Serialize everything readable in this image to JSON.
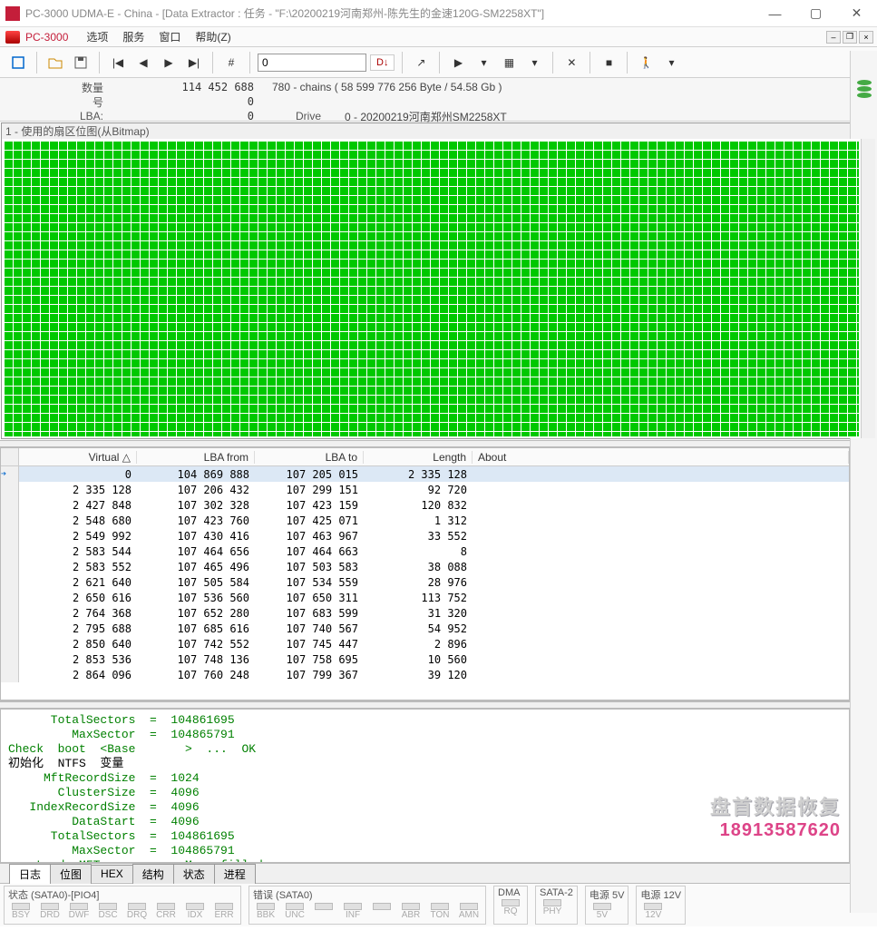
{
  "window": {
    "title": "PC-3000 UDMA-E - China - [Data Extractor : 任务 - \"F:\\20200219河南郑州-陈先生的金速120G-SM2258XT\"]"
  },
  "menu": {
    "app": "PC-3000",
    "items": [
      "选项",
      "服务",
      "窗口",
      "帮助(Z)"
    ]
  },
  "toolbar": {
    "lba_value": "0",
    "badge": "D↓"
  },
  "info": {
    "labels": {
      "qty": "数量",
      "num": "号",
      "lba": "LBA:",
      "drive": "Drive"
    },
    "qty_val": "114 452 688",
    "chains": "780 - chains  ( 58 599 776 256 Byte /  54.58 Gb )",
    "num_val": "0",
    "lba_val": "0",
    "drive_val": "0 - 20200219河南郑州SM2258XT"
  },
  "bitmap": {
    "title": "1 - 使用的扇区位图(从Bitmap)"
  },
  "table": {
    "headers": {
      "virtual": "Virtual",
      "from": "LBA from",
      "to": "LBA to",
      "length": "Length",
      "about": "About"
    },
    "rows": [
      {
        "v": "0",
        "f": "104 869 888",
        "t": "107 205 015",
        "l": "2 335 128",
        "a": ""
      },
      {
        "v": "2 335 128",
        "f": "107 206 432",
        "t": "107 299 151",
        "l": "92 720",
        "a": ""
      },
      {
        "v": "2 427 848",
        "f": "107 302 328",
        "t": "107 423 159",
        "l": "120 832",
        "a": ""
      },
      {
        "v": "2 548 680",
        "f": "107 423 760",
        "t": "107 425 071",
        "l": "1 312",
        "a": ""
      },
      {
        "v": "2 549 992",
        "f": "107 430 416",
        "t": "107 463 967",
        "l": "33 552",
        "a": ""
      },
      {
        "v": "2 583 544",
        "f": "107 464 656",
        "t": "107 464 663",
        "l": "8",
        "a": ""
      },
      {
        "v": "2 583 552",
        "f": "107 465 496",
        "t": "107 503 583",
        "l": "38 088",
        "a": ""
      },
      {
        "v": "2 621 640",
        "f": "107 505 584",
        "t": "107 534 559",
        "l": "28 976",
        "a": ""
      },
      {
        "v": "2 650 616",
        "f": "107 536 560",
        "t": "107 650 311",
        "l": "113 752",
        "a": ""
      },
      {
        "v": "2 764 368",
        "f": "107 652 280",
        "t": "107 683 599",
        "l": "31 320",
        "a": ""
      },
      {
        "v": "2 795 688",
        "f": "107 685 616",
        "t": "107 740 567",
        "l": "54 952",
        "a": ""
      },
      {
        "v": "2 850 640",
        "f": "107 742 552",
        "t": "107 745 447",
        "l": "2 896",
        "a": ""
      },
      {
        "v": "2 853 536",
        "f": "107 748 136",
        "t": "107 758 695",
        "l": "10 560",
        "a": ""
      },
      {
        "v": "2 864 096",
        "f": "107 760 248",
        "t": "107 799 367",
        "l": "39 120",
        "a": ""
      }
    ]
  },
  "log": {
    "lines": [
      {
        "t": "      TotalSectors  =  104861695",
        "c": "green"
      },
      {
        "t": "         MaxSector  =  104865791",
        "c": "green"
      },
      {
        "t": "Check  boot  <Base       >  ...  OK",
        "c": "green"
      },
      {
        "t": "初始化  NTFS  变量",
        "c": "black"
      },
      {
        "t": "     MftRecordSize  =  1024",
        "c": "green"
      },
      {
        "t": "       ClusterSize  =  4096",
        "c": "green"
      },
      {
        "t": "   IndexRecordSize  =  4096",
        "c": "green"
      },
      {
        "t": "         DataStart  =  4096",
        "c": "green"
      },
      {
        "t": "      TotalSectors  =  104861695",
        "c": "green"
      },
      {
        "t": "         MaxSector  =  104865791",
        "c": "green"
      },
      {
        "t": "    Load  MFT  map    -  Map  filled",
        "c": "green"
      }
    ]
  },
  "watermark": {
    "line1": "盘首数据恢复",
    "line2": "18913587620"
  },
  "tabs": {
    "items": [
      "日志",
      "位图",
      "HEX",
      "结构",
      "状态",
      "进程"
    ],
    "active": 0
  },
  "status": {
    "groups": [
      {
        "title": "状态 (SATA0)-[PIO4]",
        "leds": [
          "BSY",
          "DRD",
          "DWF",
          "DSC",
          "DRQ",
          "CRR",
          "IDX",
          "ERR"
        ]
      },
      {
        "title": "错误 (SATA0)",
        "leds": [
          "BBK",
          "UNC",
          "",
          "INF",
          "",
          "ABR",
          "TON",
          "AMN"
        ]
      },
      {
        "title": "DMA",
        "leds": [
          "RQ"
        ]
      },
      {
        "title": "SATA-2",
        "leds": [
          "PHY"
        ]
      },
      {
        "title": "电源 5V",
        "leds": [
          "5V"
        ]
      },
      {
        "title": "电源 12V",
        "leds": [
          "12V"
        ]
      }
    ]
  }
}
